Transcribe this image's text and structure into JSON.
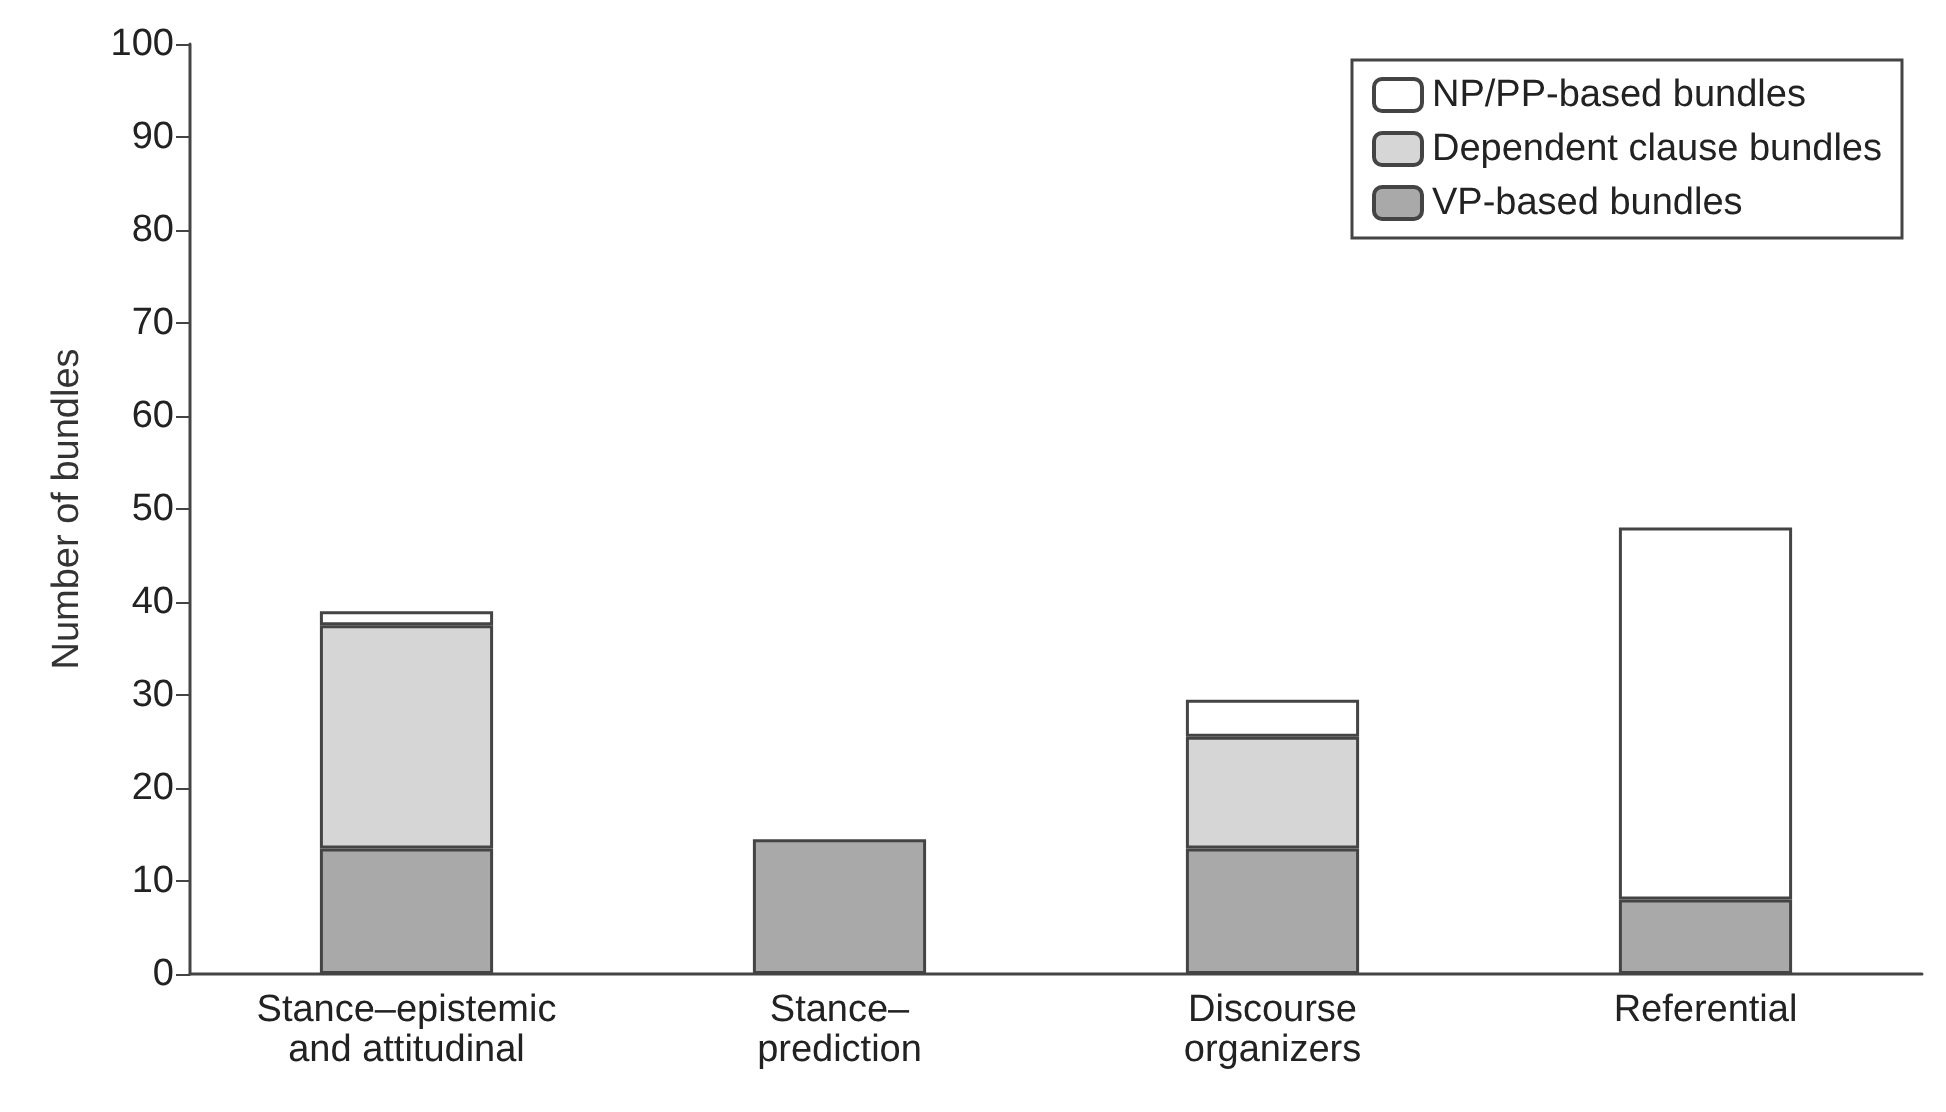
{
  "chart_data": {
    "type": "bar",
    "ylabel": "Number of bundles",
    "categories": [
      "Stance–epistemic\nand attitudinal",
      "Stance–\nprediction",
      "Discourse\norganizers",
      "Referential"
    ],
    "stacked": true,
    "series": [
      {
        "name": "VP-based bundles",
        "color": "#a9a9a9",
        "values": [
          13.5,
          14.5,
          13.5,
          8
        ]
      },
      {
        "name": "Dependent clause bundles",
        "color": "#d6d6d6",
        "values": [
          24,
          null,
          12,
          null
        ]
      },
      {
        "name": "NP/PP-based bundles",
        "color": "#ffffff",
        "values": [
          1.5,
          null,
          4,
          40
        ]
      }
    ],
    "ylim": [
      0,
      100
    ],
    "yticks": [
      0,
      10,
      20,
      30,
      40,
      50,
      60,
      70,
      80,
      90,
      100
    ],
    "grid": false,
    "legend": "top right"
  }
}
